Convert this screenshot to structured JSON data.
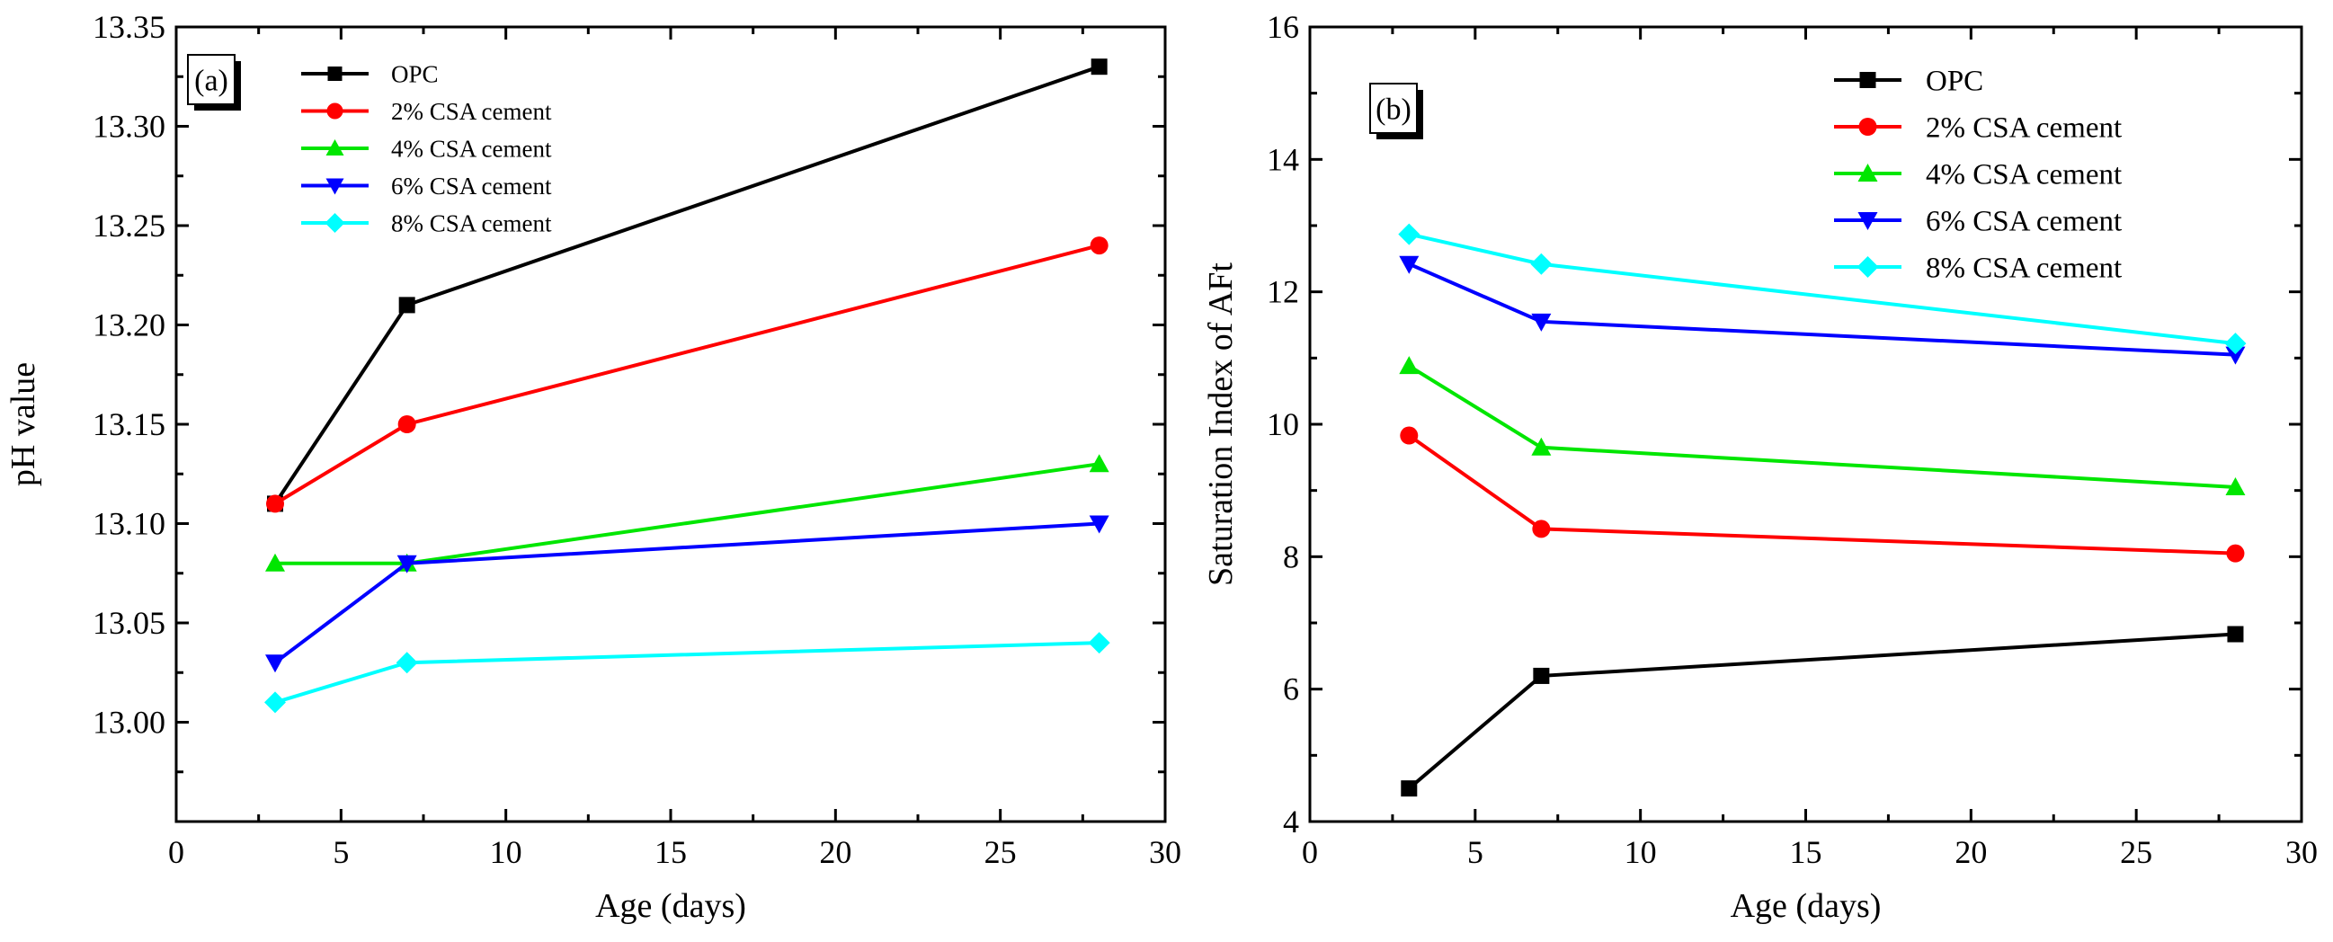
{
  "chart_data": [
    {
      "type": "line",
      "panel_label": "(a)",
      "xlabel": "Age (days)",
      "ylabel": "pH value",
      "xlim": [
        0,
        30
      ],
      "ylim": [
        12.95,
        13.35
      ],
      "xticks": [
        "0",
        "5",
        "10",
        "15",
        "20",
        "25",
        "30"
      ],
      "yticks": [
        "13.00",
        "13.05",
        "13.10",
        "13.15",
        "13.20",
        "13.25",
        "13.30",
        "13.35"
      ],
      "grid": false,
      "legend_position": "top-left",
      "x": [
        3,
        7,
        28
      ],
      "series": [
        {
          "name": "OPC",
          "color": "#000000",
          "marker": "square",
          "values": [
            13.11,
            13.21,
            13.33
          ]
        },
        {
          "name": "2% CSA cement",
          "color": "#ff0000",
          "marker": "circle",
          "values": [
            13.11,
            13.15,
            13.24
          ]
        },
        {
          "name": "4% CSA cement",
          "color": "#00e600",
          "marker": "triangle-up",
          "values": [
            13.08,
            13.08,
            13.13
          ]
        },
        {
          "name": "6% CSA cement",
          "color": "#0000ff",
          "marker": "triangle-down",
          "values": [
            13.03,
            13.08,
            13.1
          ]
        },
        {
          "name": "8% CSA cement",
          "color": "#00ffff",
          "marker": "diamond",
          "values": [
            13.01,
            13.03,
            13.04
          ]
        }
      ]
    },
    {
      "type": "line",
      "panel_label": "(b)",
      "xlabel": "Age (days)",
      "ylabel": "Saturation Index of AFt",
      "xlim": [
        0,
        30
      ],
      "ylim": [
        4,
        16
      ],
      "xticks": [
        "0",
        "5",
        "10",
        "15",
        "20",
        "25",
        "30"
      ],
      "yticks": [
        "4",
        "6",
        "8",
        "10",
        "12",
        "14",
        "16"
      ],
      "grid": false,
      "legend_position": "top-right",
      "x": [
        3,
        7,
        28
      ],
      "series": [
        {
          "name": "OPC",
          "color": "#000000",
          "marker": "square",
          "values": [
            4.5,
            6.2,
            6.83
          ]
        },
        {
          "name": "2% CSA cement",
          "color": "#ff0000",
          "marker": "circle",
          "values": [
            9.83,
            8.42,
            8.05
          ]
        },
        {
          "name": "4% CSA cement",
          "color": "#00e600",
          "marker": "triangle-up",
          "values": [
            10.88,
            9.65,
            9.05
          ]
        },
        {
          "name": "6% CSA cement",
          "color": "#0000ff",
          "marker": "triangle-down",
          "values": [
            12.42,
            11.55,
            11.05
          ]
        },
        {
          "name": "8% CSA cement",
          "color": "#00ffff",
          "marker": "diamond",
          "values": [
            12.87,
            12.42,
            11.22
          ]
        }
      ]
    }
  ]
}
